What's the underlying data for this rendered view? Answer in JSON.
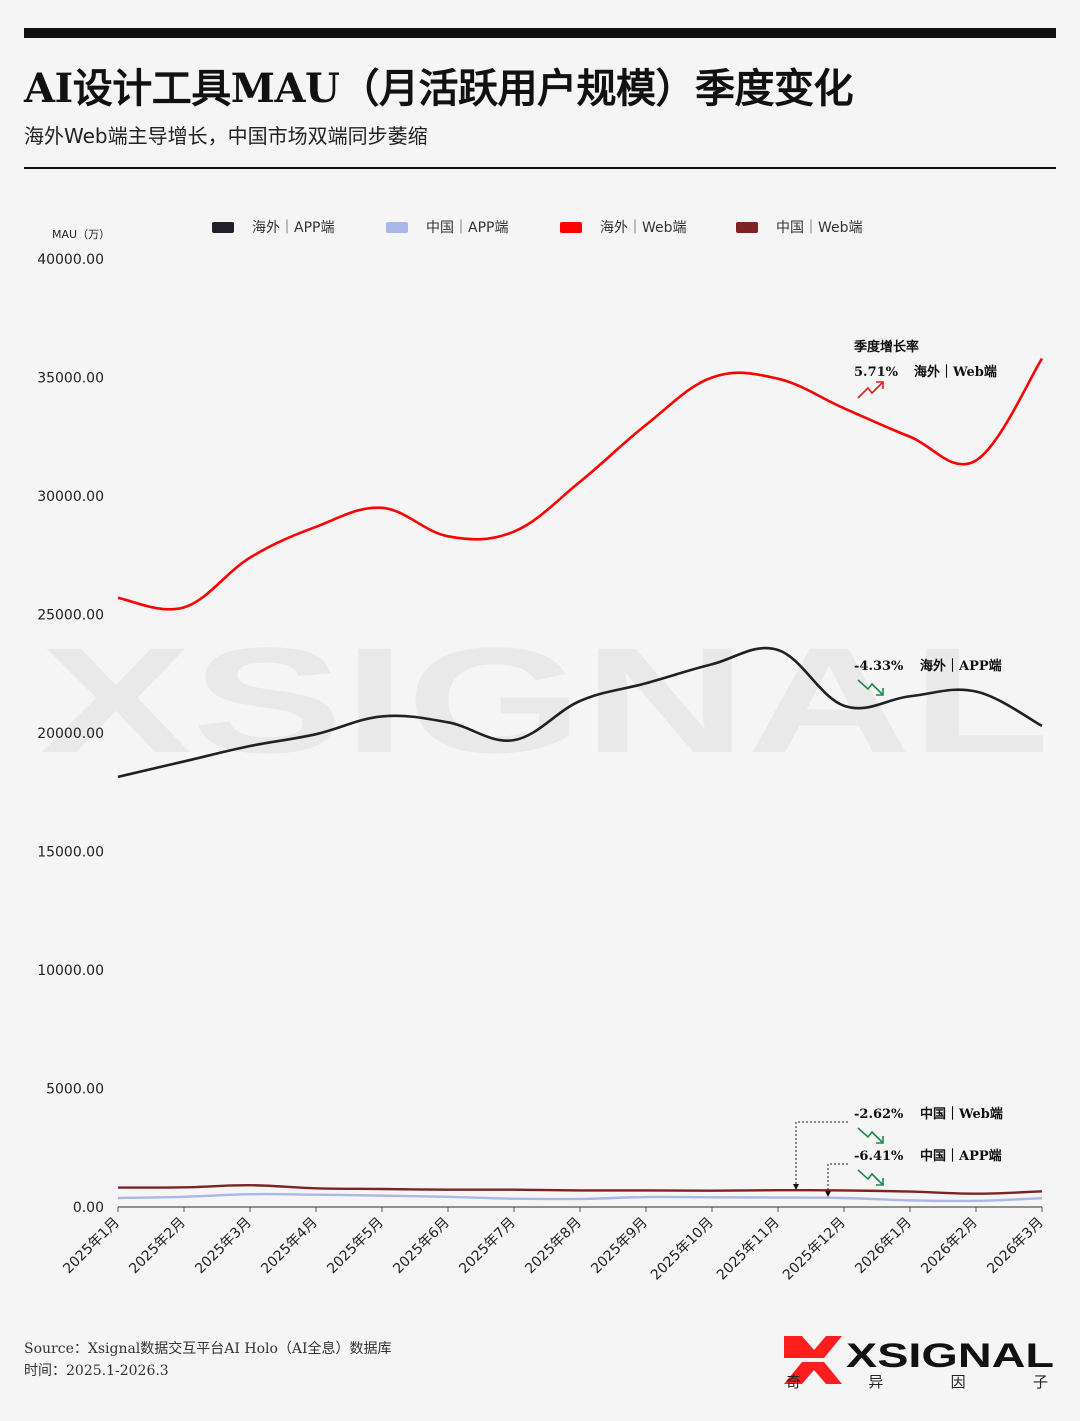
{
  "header": {
    "title": "AI设计工具MAU（月活跃用户规模）季度变化",
    "subtitle": "海外Web端主导增长，中国市场双端同步萎缩"
  },
  "chart_data": {
    "type": "line",
    "ylabel": "MAU（万）",
    "ylim": [
      0,
      40000
    ],
    "yticks": [
      "0.00",
      "5000.00",
      "10000.00",
      "15000.00",
      "20000.00",
      "25000.00",
      "30000.00",
      "35000.00",
      "40000.00"
    ],
    "categories": [
      "2025年1月",
      "2025年2月",
      "2025年3月",
      "2025年4月",
      "2025年5月",
      "2025年6月",
      "2025年7月",
      "2025年8月",
      "2025年9月",
      "2025年10月",
      "2025年11月",
      "2025年12月",
      "2026年1月",
      "2026年2月",
      "2026年3月"
    ],
    "legend_position": "top",
    "grid": false,
    "series": [
      {
        "name": "海外｜APP端",
        "color": "#1e2127",
        "values": [
          18150,
          18800,
          19450,
          19950,
          20700,
          20450,
          19700,
          21350,
          22100,
          22900,
          23500,
          21150,
          21550,
          21750,
          20300
        ]
      },
      {
        "name": "中国｜APP端",
        "color": "#a9b8e8",
        "values": [
          380,
          430,
          540,
          520,
          480,
          430,
          350,
          340,
          420,
          410,
          400,
          380,
          280,
          260,
          370
        ]
      },
      {
        "name": "海外｜Web端",
        "color": "#ff0000",
        "values": [
          25700,
          25300,
          27400,
          28700,
          29500,
          28300,
          28500,
          30600,
          33000,
          35000,
          34950,
          33700,
          32500,
          31500,
          35800
        ]
      },
      {
        "name": "中国｜Web端",
        "color": "#7b2424",
        "values": [
          820,
          830,
          920,
          790,
          760,
          730,
          730,
          700,
          700,
          690,
          710,
          700,
          650,
          560,
          660
        ]
      }
    ],
    "annotations": {
      "header": "季度增长率",
      "items": [
        {
          "value": "5.71%",
          "label": "海外｜Web端",
          "direction": "up"
        },
        {
          "value": "-4.33%",
          "label": "海外｜APP端",
          "direction": "down"
        },
        {
          "value": "-2.62%",
          "label": "中国｜Web端",
          "direction": "down"
        },
        {
          "value": "-6.41%",
          "label": "中国｜APP端",
          "direction": "down"
        }
      ]
    },
    "colors": {
      "up": "#e02020",
      "down": "#1e8a4a"
    }
  },
  "footer": {
    "source": "Source：Xsignal数据交互平台AI Holo（AI全息）数据库",
    "time": "时间：2025.1-2026.3"
  },
  "brand": {
    "logo": "XSIGNAL",
    "tagline": "奇 异 因 子",
    "watermark": "XSIGNAL"
  }
}
